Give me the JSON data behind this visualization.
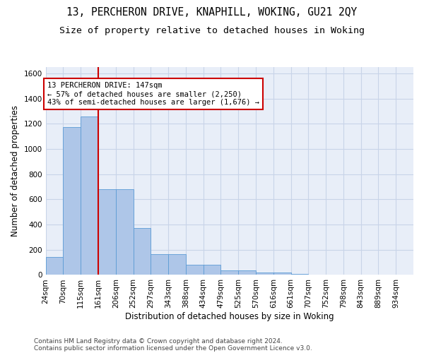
{
  "title_line1": "13, PERCHERON DRIVE, KNAPHILL, WOKING, GU21 2QY",
  "title_line2": "Size of property relative to detached houses in Woking",
  "xlabel": "Distribution of detached houses by size in Woking",
  "ylabel": "Number of detached properties",
  "footer_line1": "Contains HM Land Registry data © Crown copyright and database right 2024.",
  "footer_line2": "Contains public sector information licensed under the Open Government Licence v3.0.",
  "bin_labels": [
    "24sqm",
    "70sqm",
    "115sqm",
    "161sqm",
    "206sqm",
    "252sqm",
    "297sqm",
    "343sqm",
    "388sqm",
    "434sqm",
    "479sqm",
    "525sqm",
    "570sqm",
    "616sqm",
    "661sqm",
    "707sqm",
    "752sqm",
    "798sqm",
    "843sqm",
    "889sqm",
    "934sqm"
  ],
  "bar_values": [
    145,
    1175,
    1260,
    680,
    680,
    370,
    165,
    165,
    80,
    80,
    35,
    35,
    18,
    18,
    10,
    0,
    0,
    0,
    0,
    0,
    0
  ],
  "bar_color": "#aec6e8",
  "bar_edge_color": "#5b9bd5",
  "annotation_text": "13 PERCHERON DRIVE: 147sqm\n← 57% of detached houses are smaller (2,250)\n43% of semi-detached houses are larger (1,676) →",
  "vline_x": 3.0,
  "vline_color": "#cc0000",
  "annotation_box_color": "#cc0000",
  "ylim": [
    0,
    1650
  ],
  "yticks": [
    0,
    200,
    400,
    600,
    800,
    1000,
    1200,
    1400,
    1600
  ],
  "grid_color": "#c8d4e8",
  "bg_color": "#e8eef8",
  "title_fontsize": 10.5,
  "subtitle_fontsize": 9.5,
  "axis_label_fontsize": 8.5,
  "tick_fontsize": 7.5,
  "footer_fontsize": 6.5
}
